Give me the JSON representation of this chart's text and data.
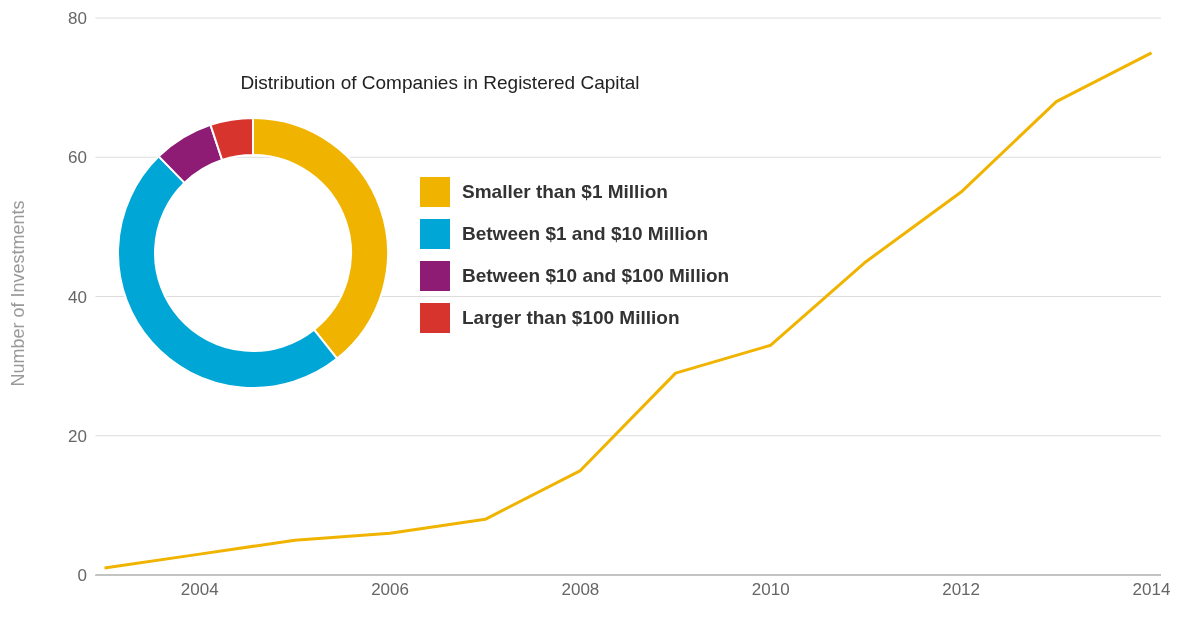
{
  "chart_data": [
    {
      "type": "line",
      "ylabel": "Number of Investments",
      "x": [
        2003,
        2004,
        2005,
        2006,
        2007,
        2008,
        2009,
        2010,
        2011,
        2012,
        2013,
        2014
      ],
      "series": [
        {
          "color": "#f0b400",
          "values": [
            1,
            3,
            5,
            6,
            8,
            15,
            29,
            33,
            45,
            55,
            68,
            75
          ]
        }
      ],
      "xlim": [
        2002.9,
        2014.1
      ],
      "xticks": [
        2004,
        2006,
        2008,
        2010,
        2012,
        2014
      ],
      "ylim": [
        0,
        80
      ],
      "yticks": [
        0,
        20,
        40,
        60,
        80
      ],
      "grid": "y"
    },
    {
      "type": "donut",
      "title": "Distribution of Companies in Registered Capital",
      "categories": [
        "Smaller than $1 Million",
        "Between $1 and $10 Million",
        "Between $10 and $100 Million",
        "Larger than $100 Million"
      ],
      "values": [
        39.3,
        48.4,
        7.2,
        5.1
      ],
      "colors": [
        "#f0b400",
        "#00a6d6",
        "#8e1c74",
        "#d7342e"
      ],
      "legend": "right"
    }
  ]
}
